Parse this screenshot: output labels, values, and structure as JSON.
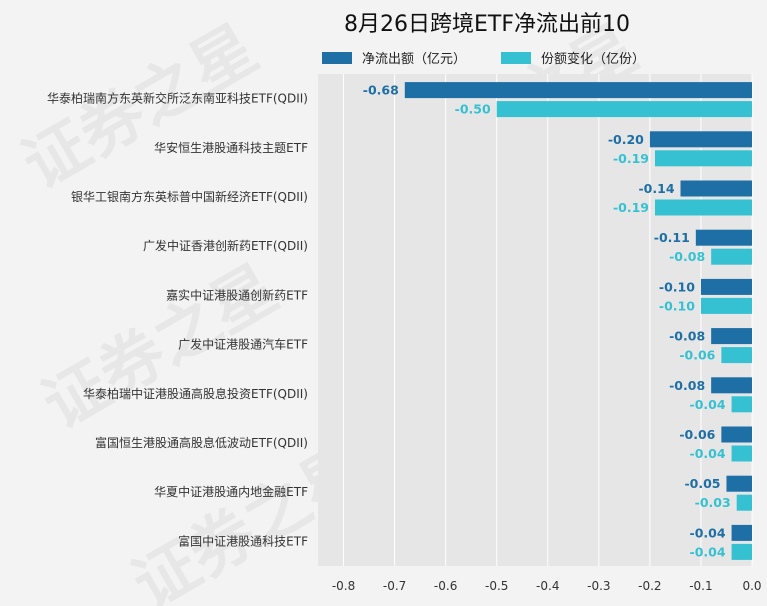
{
  "chart_data": {
    "type": "bar",
    "orientation": "horizontal",
    "title": "8月26日跨境ETF净流出前10",
    "categories": [
      "华泰柏瑞南方东英新交所泛东南亚科技ETF(QDII)",
      "华安恒生港股通科技主题ETF",
      "银华工银南方东英标普中国新经济ETF(QDII)",
      "广发中证香港创新药ETF(QDII)",
      "嘉实中证港股通创新药ETF",
      "广发中证港股通汽车ETF",
      "华泰柏瑞中证港股通高股息投资ETF(QDII)",
      "富国恒生港股通高股息低波动ETF(QDII)",
      "华夏中证港股通内地金融ETF",
      "富国中证港股通科技ETF"
    ],
    "series": [
      {
        "name": "净流出额（亿元）",
        "color": "#1d6fa5",
        "values": [
          -0.68,
          -0.2,
          -0.14,
          -0.11,
          -0.1,
          -0.08,
          -0.08,
          -0.06,
          -0.05,
          -0.04
        ],
        "labels": [
          "-0.68",
          "-0.20",
          "-0.14",
          "-0.11",
          "-0.10",
          "-0.08",
          "-0.08",
          "-0.06",
          "-0.05",
          "-0.04"
        ]
      },
      {
        "name": "份额变化（亿份）",
        "color": "#36c1d3",
        "values": [
          -0.5,
          -0.19,
          -0.19,
          -0.08,
          -0.1,
          -0.06,
          -0.04,
          -0.04,
          -0.03,
          -0.04
        ],
        "labels": [
          "-0.50",
          "-0.19",
          "-0.19",
          "-0.08",
          "-0.10",
          "-0.06",
          "-0.04",
          "-0.04",
          "-0.03",
          "-0.04"
        ]
      }
    ],
    "xlim": [
      -0.85,
      0.0
    ],
    "xticks": [
      "-0.8",
      "-0.7",
      "-0.6",
      "-0.5",
      "-0.4",
      "-0.3",
      "-0.2",
      "-0.1",
      "0.0"
    ],
    "xtick_values": [
      -0.8,
      -0.7,
      -0.6,
      -0.5,
      -0.4,
      -0.3,
      -0.2,
      -0.1,
      0.0
    ],
    "grid": true,
    "legend_position": "top"
  },
  "watermark": "证券之星"
}
